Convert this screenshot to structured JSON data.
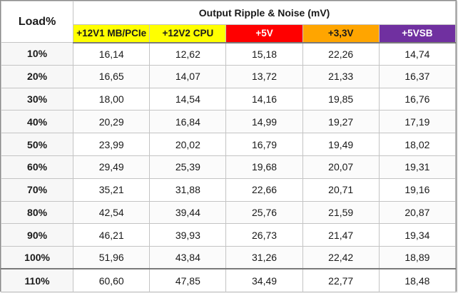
{
  "table": {
    "load_header": "Load%",
    "group_header": "Output Ripple & Noise (mV)",
    "rails": [
      {
        "label": "+12V1 MB/PCIe",
        "color": "#ffff00",
        "text_color": "#1a1a1a"
      },
      {
        "label": "+12V2 CPU",
        "color": "#ffff00",
        "text_color": "#1a1a1a"
      },
      {
        "label": "+5V",
        "color": "#ff0000",
        "text_color": "#ffffff"
      },
      {
        "label": "+3,3V",
        "color": "#ffa500",
        "text_color": "#1a1a1a"
      },
      {
        "label": "+5VSB",
        "color": "#7030a0",
        "text_color": "#ffffff"
      }
    ],
    "rows": [
      {
        "load": "10%",
        "values": [
          "16,14",
          "12,62",
          "15,18",
          "22,26",
          "14,74"
        ]
      },
      {
        "load": "20%",
        "values": [
          "16,65",
          "14,07",
          "13,72",
          "21,33",
          "16,37"
        ]
      },
      {
        "load": "30%",
        "values": [
          "18,00",
          "14,54",
          "14,16",
          "19,85",
          "16,76"
        ]
      },
      {
        "load": "40%",
        "values": [
          "20,29",
          "16,84",
          "14,99",
          "19,27",
          "17,19"
        ]
      },
      {
        "load": "50%",
        "values": [
          "23,99",
          "20,02",
          "16,79",
          "19,49",
          "18,02"
        ]
      },
      {
        "load": "60%",
        "values": [
          "29,49",
          "25,39",
          "19,68",
          "20,07",
          "19,31"
        ]
      },
      {
        "load": "70%",
        "values": [
          "35,21",
          "31,88",
          "22,66",
          "20,71",
          "19,16"
        ]
      },
      {
        "load": "80%",
        "values": [
          "42,54",
          "39,44",
          "25,76",
          "21,59",
          "20,87"
        ]
      },
      {
        "load": "90%",
        "values": [
          "46,21",
          "39,93",
          "26,73",
          "21,47",
          "19,34"
        ]
      },
      {
        "load": "100%",
        "values": [
          "51,96",
          "43,84",
          "31,26",
          "22,42",
          "18,89"
        ]
      },
      {
        "load": "110%",
        "values": [
          "60,60",
          "47,85",
          "34,49",
          "22,77",
          "18,48"
        ]
      }
    ]
  }
}
